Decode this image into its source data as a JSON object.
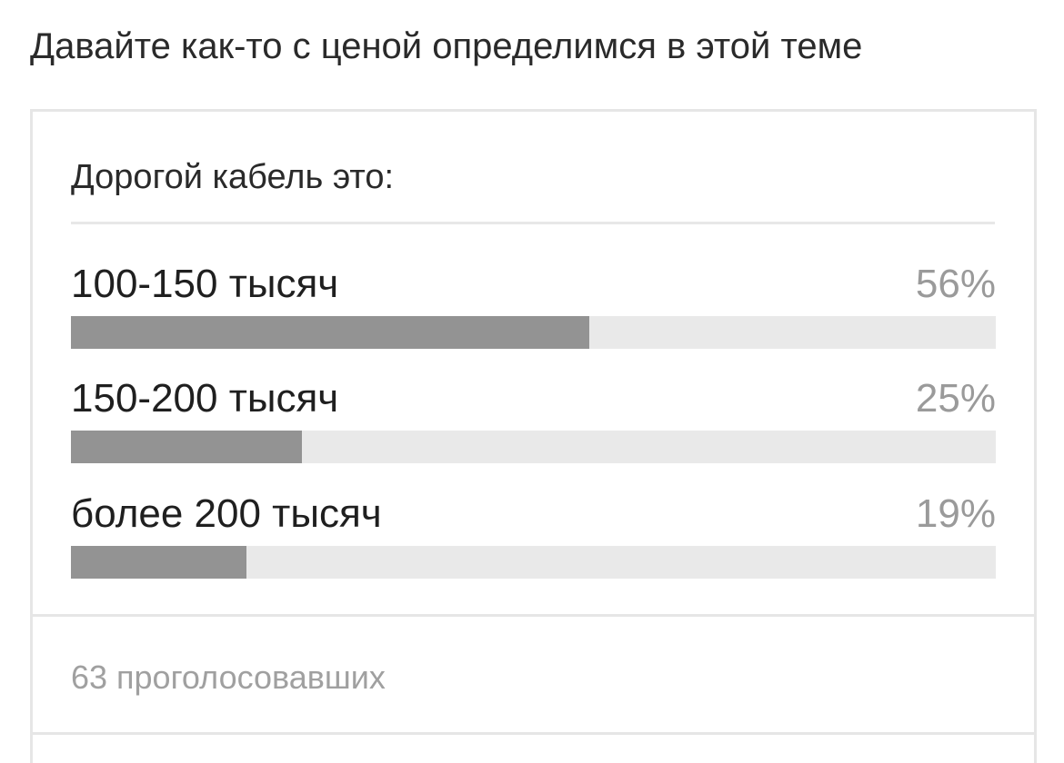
{
  "post": {
    "title": "Давайте как-то с ценой определимся в этой теме"
  },
  "poll": {
    "question": "Дорогой кабель это:",
    "options": [
      {
        "label": "100-150 тысяч",
        "percent_text": "56%",
        "percent": 56
      },
      {
        "label": "150-200 тысяч",
        "percent_text": "25%",
        "percent": 25
      },
      {
        "label": "более 200 тысяч",
        "percent_text": "19%",
        "percent": 19
      }
    ],
    "votes_text": "63 проголосовавших"
  },
  "colors": {
    "bar_fill": "#939393",
    "bar_track": "#e9e9e9",
    "muted_text": "#9a9a9a"
  }
}
